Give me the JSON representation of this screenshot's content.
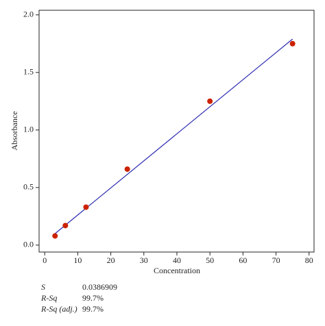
{
  "chart_data": {
    "type": "scatter",
    "x_label": "Concentration",
    "y_label": "Absorbance",
    "points": {
      "color": "#cc2200",
      "x": [
        3.125,
        6.25,
        12.5,
        25,
        50,
        75
      ],
      "values": [
        0.08,
        0.17,
        0.33,
        0.66,
        1.25,
        1.75
      ]
    },
    "fit": {
      "color": "#2b2bb0",
      "x": [
        3.125,
        75
      ],
      "values": [
        0.1,
        1.79
      ]
    },
    "xlim": [
      -1.7,
      81.5
    ],
    "xticks": [
      0,
      10,
      20,
      30,
      40,
      50,
      60,
      70,
      80
    ],
    "ylim": [
      -0.06,
      2.04
    ],
    "yticks": [
      {
        "value": 0,
        "label": "0.0"
      },
      {
        "value": 0.5,
        "label": "0.5"
      },
      {
        "value": 1,
        "label": "1.0"
      },
      {
        "value": 1.5,
        "label": "1.5"
      },
      {
        "value": 2,
        "label": "2.0"
      }
    ],
    "stats": [
      [
        "S",
        "0.0386909"
      ],
      [
        "R-Sq",
        "99.7%"
      ],
      [
        "R-Sq (adj.)",
        "99.7%"
      ]
    ]
  }
}
